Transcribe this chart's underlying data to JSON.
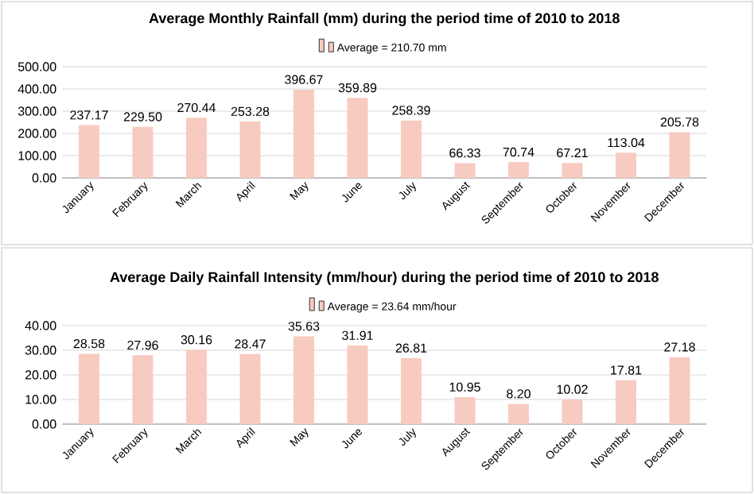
{
  "chart_data": [
    {
      "type": "bar",
      "title": "Average Monthly Rainfall (mm) during the period time of 2010 to 2018",
      "categories": [
        "January",
        "February",
        "March",
        "April",
        "May",
        "June",
        "July",
        "August",
        "September",
        "October",
        "November",
        "December"
      ],
      "series": [
        {
          "name": "Average = 210.70 mm",
          "color": "#f8cbc0",
          "values": [
            237.17,
            229.5,
            270.44,
            253.28,
            396.67,
            359.89,
            258.39,
            66.33,
            70.74,
            67.21,
            113.04,
            205.78
          ],
          "value_labels": [
            "237.17",
            "229.50",
            "270.44",
            "253.28",
            "396.67",
            "359.89",
            "258.39",
            "66.33",
            "70.74",
            "67.21",
            "113.04",
            "205.78"
          ]
        }
      ],
      "ylim": [
        0,
        500
      ],
      "yticks": [
        {
          "value": 0,
          "label": "0.00"
        },
        {
          "value": 100,
          "label": "100.00"
        },
        {
          "value": 200,
          "label": "200.00"
        },
        {
          "value": 300,
          "label": "300.00"
        },
        {
          "value": 400,
          "label": "400.00"
        },
        {
          "value": 500,
          "label": "500.00"
        }
      ],
      "grid": "y",
      "legend": "top"
    },
    {
      "type": "bar",
      "title": "Average Daily Rainfall Intensity (mm/hour) during the period time of 2010 to 2018",
      "categories": [
        "January",
        "February",
        "March",
        "April",
        "May",
        "June",
        "July",
        "August",
        "September",
        "October",
        "November",
        "December"
      ],
      "series": [
        {
          "name": "Average = 23.64 mm/hour",
          "color": "#f8cbc0",
          "values": [
            28.58,
            27.96,
            30.16,
            28.47,
            35.63,
            31.91,
            26.81,
            10.95,
            8.2,
            10.02,
            17.81,
            27.18
          ],
          "value_labels": [
            "28.58",
            "27.96",
            "30.16",
            "28.47",
            "35.63",
            "31.91",
            "26.81",
            "10.95",
            "8.20",
            "10.02",
            "17.81",
            "27.18"
          ]
        }
      ],
      "ylim": [
        0,
        40
      ],
      "yticks": [
        {
          "value": 0,
          "label": "0.00"
        },
        {
          "value": 10,
          "label": "10.00"
        },
        {
          "value": 20,
          "label": "20.00"
        },
        {
          "value": 30,
          "label": "30.00"
        },
        {
          "value": 40,
          "label": "40.00"
        }
      ],
      "grid": "y",
      "legend": "top"
    }
  ]
}
